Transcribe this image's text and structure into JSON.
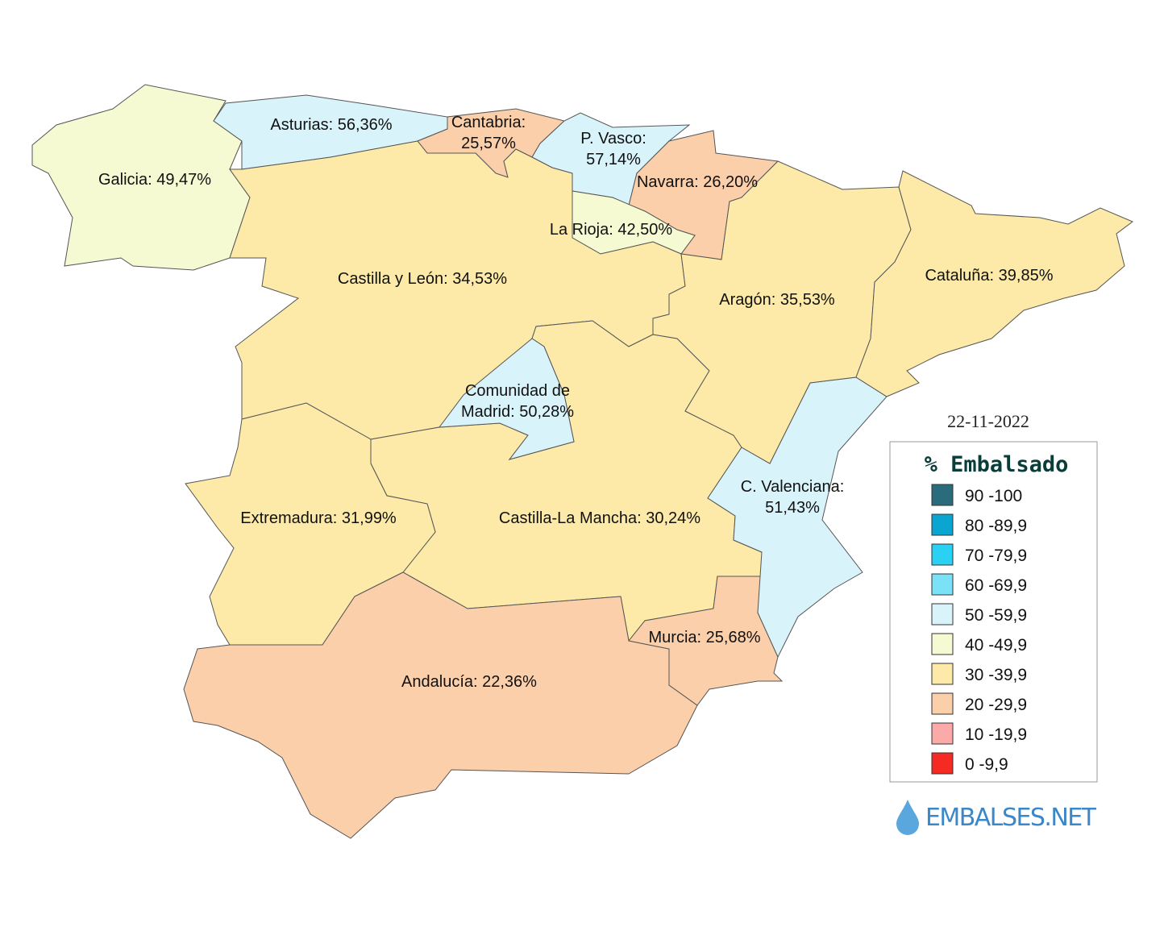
{
  "regions": [
    {
      "label": [
        "Galicia: 49,47%"
      ]
    },
    {
      "label": [
        "Asturias: 56,36%"
      ]
    },
    {
      "label": [
        "Cantabria:",
        "25,57%"
      ]
    },
    {
      "label": [
        "P. Vasco:",
        "57,14%"
      ]
    },
    {
      "label": [
        "Navarra: 26,20%"
      ]
    },
    {
      "label": [
        "La Rioja: 42,50%"
      ]
    },
    {
      "label": [
        "Castilla y León: 34,53%"
      ]
    },
    {
      "label": [
        "Aragón: 35,53%"
      ]
    },
    {
      "label": [
        "Cataluña: 39,85%"
      ]
    },
    {
      "label": [
        "Comunidad de",
        "Madrid: 50,28%"
      ]
    },
    {
      "label": [
        "Extremadura: 31,99%"
      ]
    },
    {
      "label": [
        "Castilla-La Mancha: 30,24%"
      ]
    },
    {
      "label": [
        "C. Valenciana:",
        "51,43%"
      ]
    },
    {
      "label": [
        "Murcia: 25,68%"
      ]
    },
    {
      "label": [
        "Andalucía: 22,36%"
      ]
    }
  ],
  "date": "22-11-2022",
  "legend": {
    "title": "% Embalsado",
    "items": [
      {
        "label": "90 -100",
        "color": "#2a6b7c"
      },
      {
        "label": "80 -89,9",
        "color": "#0aa5d1"
      },
      {
        "label": "70 -79,9",
        "color": "#2bd1f3"
      },
      {
        "label": "60 -69,9",
        "color": "#7be1f7"
      },
      {
        "label": "50 -59,9",
        "color": "#d9f3fb"
      },
      {
        "label": "40 -49,9",
        "color": "#f5fad2"
      },
      {
        "label": "30 -39,9",
        "color": "#fdeaa8"
      },
      {
        "label": "20 -29,9",
        "color": "#fbcfaa"
      },
      {
        "label": "10 -19,9",
        "color": "#fca9a9"
      },
      {
        "label": "0 -9,9",
        "color": "#f52a22"
      }
    ]
  },
  "logo": "EMBALSES.NET"
}
